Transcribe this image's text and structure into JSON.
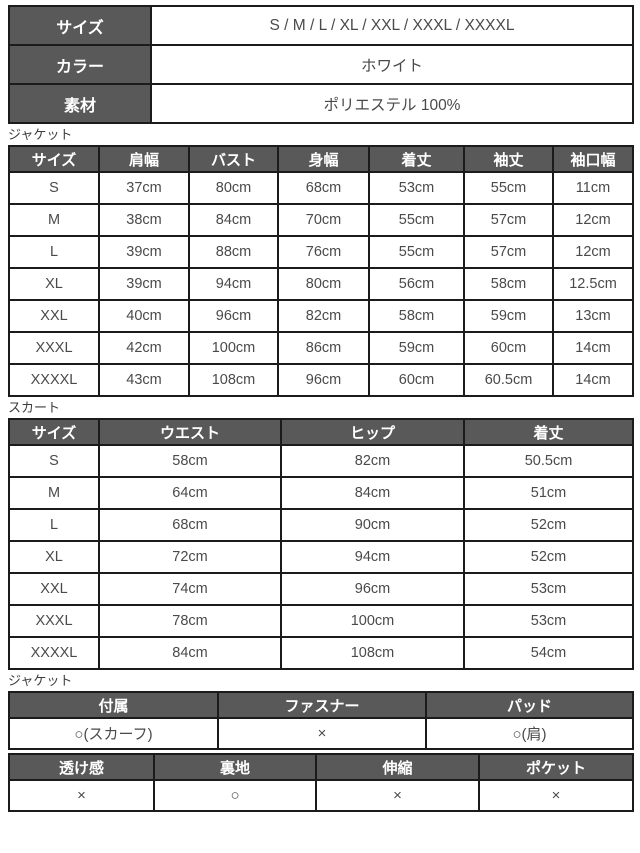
{
  "colors": {
    "header_bg": "#595959",
    "header_text": "#ffffff",
    "body_text": "#4a4a4a",
    "border": "#1b1b1b"
  },
  "product_info": {
    "rows": [
      {
        "label": "サイズ",
        "value": "S / M / L / XL / XXL / XXXL / XXXXL"
      },
      {
        "label": "カラー",
        "value": "ホワイト"
      },
      {
        "label": "素材",
        "value": "ポリエステル 100%"
      }
    ]
  },
  "jacket_measurements": {
    "section_label": "ジャケット",
    "headers": [
      "サイズ",
      "肩幅",
      "バスト",
      "身幅",
      "着丈",
      "袖丈",
      "袖口幅"
    ],
    "rows": [
      [
        "S",
        "37cm",
        "80cm",
        "68cm",
        "53cm",
        "55cm",
        "11cm"
      ],
      [
        "M",
        "38cm",
        "84cm",
        "70cm",
        "55cm",
        "57cm",
        "12cm"
      ],
      [
        "L",
        "39cm",
        "88cm",
        "76cm",
        "55cm",
        "57cm",
        "12cm"
      ],
      [
        "XL",
        "39cm",
        "94cm",
        "80cm",
        "56cm",
        "58cm",
        "12.5cm"
      ],
      [
        "XXL",
        "40cm",
        "96cm",
        "82cm",
        "58cm",
        "59cm",
        "13cm"
      ],
      [
        "XXXL",
        "42cm",
        "100cm",
        "86cm",
        "59cm",
        "60cm",
        "14cm"
      ],
      [
        "XXXXL",
        "43cm",
        "108cm",
        "96cm",
        "60cm",
        "60.5cm",
        "14cm"
      ]
    ]
  },
  "skirt_measurements": {
    "section_label": "スカート",
    "headers": [
      "サイズ",
      "ウエスト",
      "ヒップ",
      "着丈"
    ],
    "rows": [
      [
        "S",
        "58cm",
        "82cm",
        "50.5cm"
      ],
      [
        "M",
        "64cm",
        "84cm",
        "51cm"
      ],
      [
        "L",
        "68cm",
        "90cm",
        "52cm"
      ],
      [
        "XL",
        "72cm",
        "94cm",
        "52cm"
      ],
      [
        "XXL",
        "74cm",
        "96cm",
        "53cm"
      ],
      [
        "XXXL",
        "78cm",
        "100cm",
        "53cm"
      ],
      [
        "XXXXL",
        "84cm",
        "108cm",
        "54cm"
      ]
    ]
  },
  "jacket_details": {
    "section_label": "ジャケット",
    "spec_table_1": {
      "headers": [
        "付属",
        "ファスナー",
        "パッド"
      ],
      "values": [
        "○(スカーフ)",
        "×",
        "○(肩)"
      ]
    },
    "spec_table_2": {
      "headers": [
        "透け感",
        "裏地",
        "伸縮",
        "ポケット"
      ],
      "values": [
        "×",
        "○",
        "×",
        "×"
      ]
    }
  }
}
